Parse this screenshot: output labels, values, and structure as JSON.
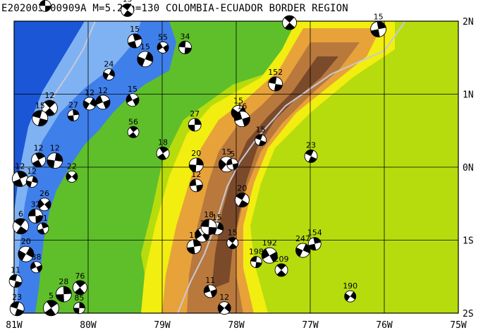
{
  "title": "E202003500909A M=5.2 h=130 COLOMBIA-ECUADOR BORDER REGION",
  "axes": {
    "lon_labels": [
      "81W",
      "80W",
      "79W",
      "78W",
      "77W",
      "76W",
      "75W"
    ],
    "lat_labels": [
      "2N",
      "1N",
      "0N",
      "1S",
      "2S"
    ]
  },
  "colors": {
    "deep_ocean": "#1a56d6",
    "ocean": "#3f7fea",
    "shelf": "#7fb2f3",
    "shallow": "#b9d8f7",
    "lowland": "#5fbf2a",
    "plain": "#b7dc0d",
    "foothill": "#f2ee10",
    "hill": "#e8a23a",
    "mountain": "#b9793d",
    "peak": "#7a4a2a",
    "road": "#c8c8d8",
    "grid": "#000000"
  },
  "events": [
    {
      "label": "15",
      "lon": -80.58,
      "lat": 2.21
    },
    {
      "label": "15",
      "lon": -79.47,
      "lat": 2.15
    },
    {
      "label": "15",
      "lon": -79.37,
      "lat": 1.73
    },
    {
      "label": "15",
      "lon": -79.23,
      "lat": 1.48
    },
    {
      "label": "55",
      "lon": -78.99,
      "lat": 1.64
    },
    {
      "label": "34",
      "lon": -78.69,
      "lat": 1.64
    },
    {
      "label": "",
      "lon": -77.28,
      "lat": 1.98
    },
    {
      "label": "15",
      "lon": -76.08,
      "lat": 1.89
    },
    {
      "label": "24",
      "lon": -79.72,
      "lat": 1.27
    },
    {
      "label": "15",
      "lon": -79.4,
      "lat": 0.92
    },
    {
      "label": "152",
      "lon": -77.47,
      "lat": 1.14
    },
    {
      "label": "12",
      "lon": -80.52,
      "lat": 0.81
    },
    {
      "label": "27",
      "lon": -80.2,
      "lat": 0.71
    },
    {
      "label": "12",
      "lon": -79.98,
      "lat": 0.87
    },
    {
      "label": "12",
      "lon": -79.8,
      "lat": 0.89
    },
    {
      "label": "15",
      "lon": -80.65,
      "lat": 0.67
    },
    {
      "label": "56",
      "lon": -79.39,
      "lat": 0.48
    },
    {
      "label": "27",
      "lon": -78.56,
      "lat": 0.58
    },
    {
      "label": "15",
      "lon": -77.97,
      "lat": 0.75
    },
    {
      "label": "16",
      "lon": -77.92,
      "lat": 0.66
    },
    {
      "label": "15",
      "lon": -77.67,
      "lat": 0.37
    },
    {
      "label": "18",
      "lon": -78.99,
      "lat": 0.19
    },
    {
      "label": "20",
      "lon": -78.54,
      "lat": 0.03
    },
    {
      "label": "15",
      "lon": -78.13,
      "lat": 0.04
    },
    {
      "label": "5",
      "lon": -78.05,
      "lat": 0.04
    },
    {
      "label": "23",
      "lon": -76.99,
      "lat": 0.15
    },
    {
      "label": "12",
      "lon": -80.67,
      "lat": 0.1
    },
    {
      "label": "12",
      "lon": -80.45,
      "lat": 0.09
    },
    {
      "label": "22",
      "lon": -80.22,
      "lat": -0.13
    },
    {
      "label": "12",
      "lon": -78.54,
      "lat": -0.25
    },
    {
      "label": "20",
      "lon": -77.92,
      "lat": -0.45
    },
    {
      "label": "12",
      "lon": -80.92,
      "lat": -0.16
    },
    {
      "label": "12",
      "lon": -80.76,
      "lat": -0.2
    },
    {
      "label": "26",
      "lon": -80.59,
      "lat": -0.51
    },
    {
      "label": "32",
      "lon": -80.71,
      "lat": -0.67
    },
    {
      "label": "6",
      "lon": -80.91,
      "lat": -0.81
    },
    {
      "label": "21",
      "lon": -80.61,
      "lat": -0.84
    },
    {
      "label": "15",
      "lon": -78.26,
      "lat": -0.84
    },
    {
      "label": "3",
      "lon": -78.46,
      "lat": -0.93
    },
    {
      "label": "18",
      "lon": -78.37,
      "lat": -0.82
    },
    {
      "label": "15",
      "lon": -78.05,
      "lat": -1.04
    },
    {
      "label": "154",
      "lon": -76.94,
      "lat": -1.05
    },
    {
      "label": "247",
      "lon": -77.1,
      "lat": -1.14
    },
    {
      "label": "192",
      "lon": -77.55,
      "lat": -1.21
    },
    {
      "label": "198",
      "lon": -77.73,
      "lat": -1.3
    },
    {
      "label": "209",
      "lon": -77.39,
      "lat": -1.41
    },
    {
      "label": "15",
      "lon": -78.57,
      "lat": -1.09
    },
    {
      "label": "20",
      "lon": -80.84,
      "lat": -1.19
    },
    {
      "label": "38",
      "lon": -80.7,
      "lat": -1.37
    },
    {
      "label": "11",
      "lon": -80.98,
      "lat": -1.56
    },
    {
      "label": "76",
      "lon": -80.11,
      "lat": -1.65
    },
    {
      "label": "28",
      "lon": -80.33,
      "lat": -1.74
    },
    {
      "label": "190",
      "lon": -76.46,
      "lat": -1.77
    },
    {
      "label": "11",
      "lon": -78.35,
      "lat": -1.7
    },
    {
      "label": "23",
      "lon": -80.96,
      "lat": -1.94
    },
    {
      "label": "5",
      "lon": -80.5,
      "lat": -1.93
    },
    {
      "label": "85",
      "lon": -80.12,
      "lat": -1.93
    },
    {
      "label": "12",
      "lon": -78.16,
      "lat": -1.93
    }
  ]
}
